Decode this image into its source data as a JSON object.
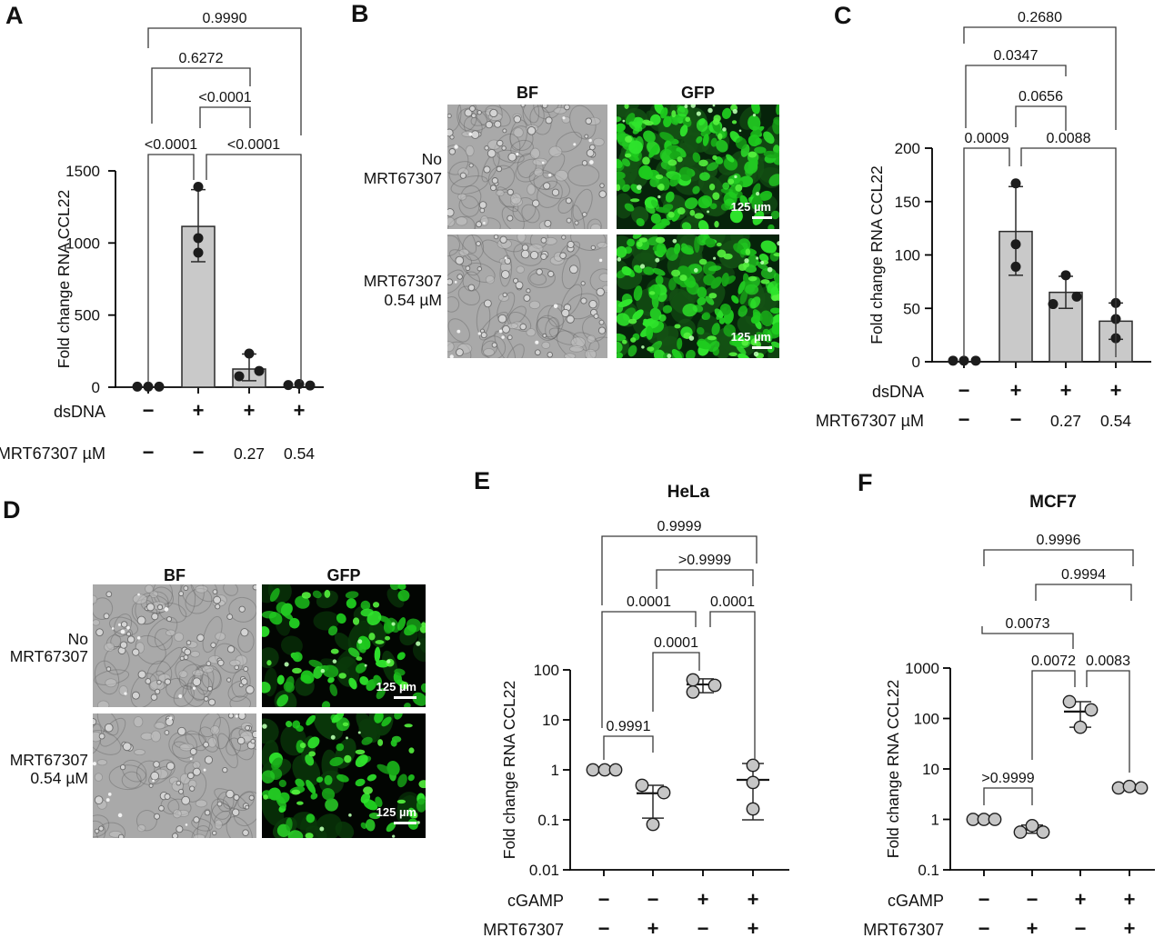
{
  "figure": {
    "background": "#ffffff",
    "colors": {
      "bar_fill": "#c9c9c9",
      "bar_stroke": "#2b2b2b",
      "dot_dark": "#1c1c1c",
      "dot_light_fill": "#c6c6c6",
      "dot_light_stroke": "#1f1f1f",
      "gfp_green": "#22cc22",
      "axis": "#000000"
    }
  },
  "panel_a": {
    "label": "A",
    "chart_data": {
      "type": "bar",
      "ylabel": "Fold change RNA CCL22",
      "ylim": [
        0,
        1500
      ],
      "yticks": [
        0,
        500,
        1000,
        1500
      ],
      "bars": [
        0,
        1115,
        126,
        0
      ],
      "points": [
        [
          4,
          4,
          4
        ],
        [
          1390,
          1034,
          933
        ],
        [
          233,
          76,
          113
        ],
        [
          15,
          22,
          12
        ]
      ],
      "error": [
        null,
        {
          "lo": 870,
          "hi": 1370
        },
        {
          "lo": 45,
          "hi": 230
        },
        null
      ],
      "row_labels": [
        "dsDNA",
        "MRT67307 µM"
      ],
      "row_values": [
        [
          "−",
          "+",
          "+",
          "+"
        ],
        [
          "−",
          "−",
          "0.27",
          "0.54"
        ]
      ],
      "comparisons": [
        {
          "a": 0,
          "b": 1,
          "p": "<0.0001"
        },
        {
          "a": 1,
          "b": 3,
          "p": "<0.0001"
        },
        {
          "a": 1,
          "b": 2,
          "p": "<0.0001"
        },
        {
          "a": 0,
          "b": 2,
          "p": "0.6272"
        },
        {
          "a": 0,
          "b": 3,
          "p": "0.9990"
        }
      ]
    }
  },
  "panel_b": {
    "label": "B",
    "col_headers": [
      "BF",
      "GFP"
    ],
    "rows": [
      {
        "label_lines": [
          "No",
          "MRT67307"
        ],
        "scalebar": "125 µm"
      },
      {
        "label_lines": [
          "MRT67307",
          "0.54 µM"
        ],
        "scalebar": "125 µm"
      }
    ]
  },
  "panel_c": {
    "label": "C",
    "chart_data": {
      "type": "bar",
      "ylabel": "Fold change RNA CCL22",
      "ylim": [
        0,
        200
      ],
      "yticks": [
        0,
        50,
        100,
        150,
        200
      ],
      "bars": [
        0,
        122,
        65,
        38
      ],
      "points": [
        [
          1,
          1,
          1
        ],
        [
          167,
          110,
          89
        ],
        [
          54,
          81,
          61
        ],
        [
          55,
          40,
          22
        ]
      ],
      "error": [
        null,
        {
          "lo": 81,
          "hi": 164
        },
        {
          "lo": 50,
          "hi": 80
        },
        {
          "lo": 21,
          "hi": 55
        }
      ],
      "row_labels": [
        "dsDNA",
        "MRT67307 µM"
      ],
      "row_values": [
        [
          "−",
          "+",
          "+",
          "+"
        ],
        [
          "−",
          "−",
          "0.27",
          "0.54"
        ]
      ],
      "comparisons": [
        {
          "a": 0,
          "b": 1,
          "p": "0.0009"
        },
        {
          "a": 1,
          "b": 3,
          "p": "0.0088"
        },
        {
          "a": 1,
          "b": 2,
          "p": "0.0656"
        },
        {
          "a": 0,
          "b": 2,
          "p": "0.0347"
        },
        {
          "a": 0,
          "b": 3,
          "p": "0.2680"
        }
      ]
    }
  },
  "panel_d": {
    "label": "D",
    "col_headers": [
      "BF",
      "GFP"
    ],
    "rows": [
      {
        "label_lines": [
          "No",
          "MRT67307"
        ],
        "scalebar": "125 µm"
      },
      {
        "label_lines": [
          "MRT67307",
          "0.54 µM"
        ],
        "scalebar": "125 µm"
      }
    ]
  },
  "panel_e": {
    "label": "E",
    "chart_data": {
      "type": "scatter",
      "title": "HeLa",
      "ylabel": "Fold change RNA CCL22",
      "yscale": "log",
      "ylim": [
        0.01,
        100
      ],
      "yticks": [
        0.01,
        0.1,
        1,
        10,
        100
      ],
      "points": [
        [
          1.0,
          1.0,
          1.0
        ],
        [
          0.49,
          0.35,
          0.081
        ],
        [
          63,
          36,
          49
        ],
        [
          1.23,
          0.56,
          0.165
        ]
      ],
      "error": [
        null,
        {
          "mean": 0.34,
          "lo": 0.108,
          "hi": 0.49
        },
        {
          "mean": 51,
          "lo": 35,
          "hi": 66
        },
        {
          "mean": 0.63,
          "lo": 0.1,
          "hi": 1.34
        }
      ],
      "row_labels": [
        "cGAMP",
        "MRT67307"
      ],
      "row_values": [
        [
          "−",
          "−",
          "+",
          "+"
        ],
        [
          "−",
          "+",
          "−",
          "+"
        ]
      ],
      "comparisons": [
        {
          "a": 0,
          "b": 1,
          "p": "0.9991"
        },
        {
          "a": 1,
          "b": 2,
          "p": "0.0001"
        },
        {
          "a": 0,
          "b": 2,
          "p": "0.0001"
        },
        {
          "a": 2,
          "b": 3,
          "p": "0.0001"
        },
        {
          "a": 1,
          "b": 3,
          "p": ">0.9999"
        },
        {
          "a": 0,
          "b": 3,
          "p": "0.9999"
        }
      ]
    }
  },
  "panel_f": {
    "label": "F",
    "chart_data": {
      "type": "scatter",
      "title": "MCF7",
      "ylabel": "Fold change RNA CCL22",
      "yscale": "log",
      "ylim": [
        0.1,
        1000
      ],
      "yticks": [
        0.1,
        1,
        10,
        100,
        1000
      ],
      "points": [
        [
          1.0,
          1.0,
          1.0
        ],
        [
          0.56,
          0.75,
          0.56
        ],
        [
          215,
          148,
          67
        ],
        [
          4.2,
          4.5,
          4.2
        ]
      ],
      "error": [
        null,
        {
          "mean": 0.63,
          "lo": 0.53,
          "hi": 0.77
        },
        {
          "mean": 137,
          "lo": 67,
          "hi": 215
        },
        {
          "mean": 4.3,
          "lo": 3.8,
          "hi": 4.9
        }
      ],
      "row_labels": [
        "cGAMP",
        "MRT67307"
      ],
      "row_values": [
        [
          "−",
          "−",
          "+",
          "+"
        ],
        [
          "−",
          "+",
          "−",
          "+"
        ]
      ],
      "comparisons": [
        {
          "a": 0,
          "b": 1,
          "p": ">0.9999"
        },
        {
          "a": 1,
          "b": 2,
          "p": "0.0072"
        },
        {
          "a": 2,
          "b": 3,
          "p": "0.0083"
        },
        {
          "a": 0,
          "b": 2,
          "p": "0.0073"
        },
        {
          "a": 1,
          "b": 3,
          "p": "0.9994"
        },
        {
          "a": 0,
          "b": 3,
          "p": "0.9996"
        }
      ]
    }
  }
}
